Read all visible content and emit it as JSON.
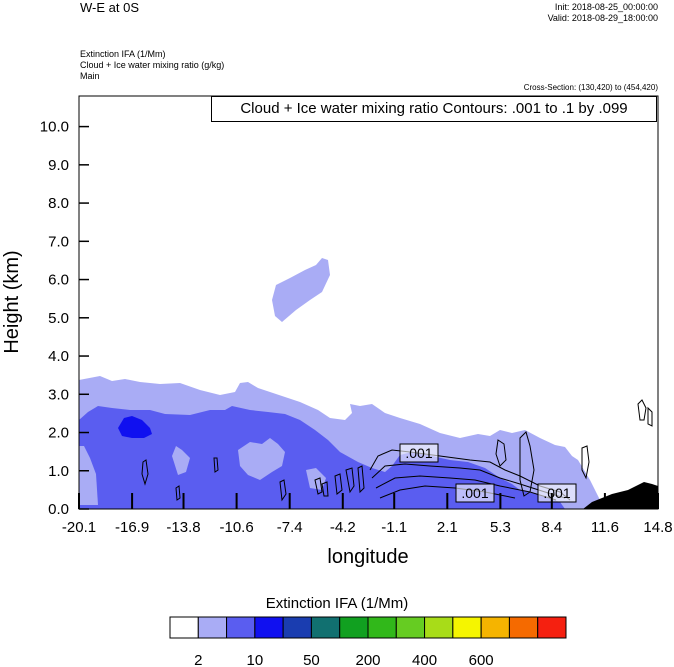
{
  "header": {
    "title": "W-E at 0S",
    "init": "Init: 2018-08-25_00:00:00",
    "valid": "Valid: 2018-08-29_18:00:00",
    "field_lines": [
      "Extinction IFA   (1/Mm)",
      "Cloud + Ice water mixing ratio   (g/kg)",
      "Main"
    ],
    "cross_section": "Cross-Section: (130,420) to (454,420)"
  },
  "contour_label": "Cloud + Ice water mixing ratio Contours: .001 to .1 by .099",
  "chart_data": {
    "type": "heatmap",
    "xlabel": "longitude",
    "ylabel": "Height (km)",
    "x_ticks": [
      "-20.1",
      "-16.9",
      "-13.8",
      "-10.6",
      "-7.4",
      "-4.2",
      "-1.1",
      "2.1",
      "5.3",
      "8.4",
      "11.6",
      "14.8"
    ],
    "y_ticks": [
      "0.0",
      "1.0",
      "2.0",
      "3.0",
      "4.0",
      "5.0",
      "6.0",
      "7.0",
      "8.0",
      "9.0",
      "10.0"
    ],
    "xlim": [
      -20.1,
      14.8
    ],
    "ylim": [
      0,
      10.8
    ],
    "contour_labels": [
      ".001",
      ".001",
      ".001"
    ],
    "colorbar": {
      "title": "Extinction IFA  (1/Mm)",
      "colors": [
        "#ffffff",
        "#a9acf5",
        "#5a5df0",
        "#1010f0",
        "#1a3db0",
        "#117070",
        "#11a020",
        "#31b81a",
        "#66cc22",
        "#a8dc18",
        "#f5f500",
        "#f5b400",
        "#f56a00",
        "#f52010"
      ],
      "labels": [
        "2",
        "10",
        "50",
        "200",
        "400",
        "600"
      ]
    },
    "fill_colors": {
      "light": "#a9acf5",
      "medium": "#5a5df0",
      "dark": "#1010f0",
      "terrain": "#000000"
    }
  }
}
